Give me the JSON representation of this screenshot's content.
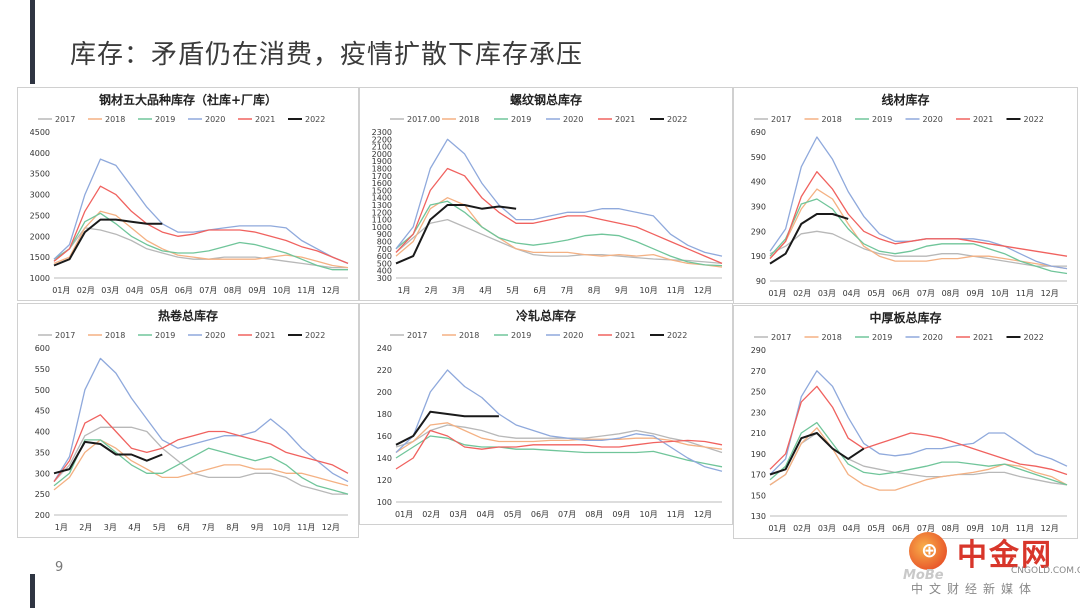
{
  "slide": {
    "title": "库存：矛盾仍在消费，疫情扩散下库存承压",
    "page_number": "9"
  },
  "watermark": {
    "name": "中金网",
    "mark": "MoBe",
    "url": "CNGOLD.COM.CN",
    "slogan": "中文财经新媒体",
    "icon": "zhongjin-logo-icon"
  },
  "colors": {
    "2017": "#b8b8b8",
    "2018": "#f4b183",
    "2019": "#70c59a",
    "2020": "#8fa9dc",
    "2021": "#f0625f",
    "2022": "#1a1a1a"
  },
  "chart_data": [
    {
      "type": "line",
      "title": "钢材五大品种库存（社库+厂库）",
      "x_tick_labels": [
        "01月",
        "02月",
        "03月",
        "04月",
        "05月",
        "06月",
        "07月",
        "08月",
        "09月",
        "10月",
        "11月",
        "12月"
      ],
      "ylim": [
        1000,
        4500
      ],
      "y_ticks": [
        1000,
        1500,
        2000,
        2500,
        3000,
        3500,
        4000,
        4500
      ],
      "legend": "top",
      "series": [
        {
          "name": "2017",
          "values": [
            1400,
            1700,
            2200,
            2150,
            2050,
            1900,
            1700,
            1600,
            1500,
            1450,
            1450,
            1500,
            1500,
            1500,
            1450,
            1400,
            1350,
            1300,
            1250,
            1250
          ]
        },
        {
          "name": "2018",
          "values": [
            1350,
            1500,
            2200,
            2600,
            2500,
            2200,
            1900,
            1700,
            1550,
            1500,
            1450,
            1450,
            1450,
            1450,
            1500,
            1550,
            1500,
            1400,
            1300,
            1250
          ]
        },
        {
          "name": "2019",
          "values": [
            1450,
            1700,
            2350,
            2550,
            2300,
            2000,
            1800,
            1650,
            1600,
            1600,
            1650,
            1750,
            1850,
            1800,
            1700,
            1600,
            1450,
            1300,
            1200,
            1200
          ]
        },
        {
          "name": "2020",
          "values": [
            1450,
            1800,
            3000,
            3850,
            3700,
            3200,
            2700,
            2300,
            2100,
            2100,
            2150,
            2200,
            2250,
            2250,
            2250,
            2200,
            1900,
            1700,
            1500,
            1350
          ]
        },
        {
          "name": "2021",
          "values": [
            1400,
            1700,
            2600,
            3200,
            3000,
            2600,
            2300,
            2100,
            2000,
            2050,
            2150,
            2150,
            2150,
            2100,
            2000,
            1900,
            1750,
            1650,
            1500,
            1350
          ]
        },
        {
          "name": "2022",
          "values": [
            1300,
            1450,
            2100,
            2400,
            2400,
            2350,
            2300,
            2300,
            null,
            null,
            null,
            null,
            null,
            null,
            null,
            null,
            null,
            null,
            null,
            null
          ]
        }
      ]
    },
    {
      "type": "line",
      "title": "螺纹钢总库存",
      "x_tick_labels": [
        "1月",
        "2月",
        "3月",
        "4月",
        "5月",
        "6月",
        "7月",
        "8月",
        "9月",
        "10月",
        "11月",
        "12月"
      ],
      "ylim": [
        300,
        2300
      ],
      "y_ticks": [
        300,
        400,
        500,
        600,
        700,
        800,
        900,
        1000,
        1100,
        1200,
        1300,
        1400,
        1500,
        1600,
        1700,
        1800,
        1900,
        2000,
        2100,
        2200,
        2300
      ],
      "legend": "top",
      "series": [
        {
          "name": "2017.00",
          "values": [
            650,
            850,
            1050,
            1100,
            1000,
            900,
            800,
            700,
            620,
            600,
            600,
            620,
            620,
            600,
            580,
            560,
            550,
            540,
            520,
            500
          ]
        },
        {
          "name": "2018",
          "values": [
            600,
            800,
            1250,
            1400,
            1300,
            1000,
            850,
            700,
            650,
            650,
            650,
            620,
            600,
            620,
            600,
            620,
            550,
            500,
            480,
            450
          ]
        },
        {
          "name": "2019",
          "values": [
            700,
            900,
            1300,
            1350,
            1200,
            1000,
            850,
            780,
            750,
            780,
            820,
            880,
            900,
            880,
            800,
            700,
            600,
            520,
            480,
            470
          ]
        },
        {
          "name": "2020",
          "values": [
            700,
            1000,
            1800,
            2200,
            2000,
            1600,
            1300,
            1100,
            1100,
            1150,
            1200,
            1200,
            1250,
            1250,
            1200,
            1150,
            900,
            750,
            650,
            600
          ]
        },
        {
          "name": "2021",
          "values": [
            650,
            900,
            1500,
            1800,
            1700,
            1400,
            1200,
            1050,
            1050,
            1100,
            1150,
            1150,
            1100,
            1050,
            1000,
            900,
            800,
            700,
            600,
            500
          ]
        },
        {
          "name": "2022",
          "values": [
            500,
            600,
            1100,
            1300,
            1300,
            1250,
            1280,
            1250,
            null,
            null,
            null,
            null,
            null,
            null,
            null,
            null,
            null,
            null,
            null,
            null
          ]
        }
      ]
    },
    {
      "type": "line",
      "title": "线材库存",
      "x_tick_labels": [
        "01月",
        "02月",
        "03月",
        "04月",
        "05月",
        "06月",
        "07月",
        "08月",
        "09月",
        "10月",
        "11月",
        "12月"
      ],
      "ylim": [
        90,
        690
      ],
      "y_ticks": [
        90,
        190,
        290,
        390,
        490,
        590,
        690
      ],
      "legend": "top",
      "series": [
        {
          "name": "2017",
          "values": [
            200,
            230,
            280,
            290,
            280,
            250,
            220,
            200,
            190,
            190,
            190,
            200,
            200,
            190,
            180,
            170,
            160,
            150,
            150,
            150
          ]
        },
        {
          "name": "2018",
          "values": [
            180,
            250,
            380,
            460,
            420,
            320,
            230,
            190,
            170,
            170,
            170,
            180,
            180,
            190,
            190,
            180,
            170,
            160,
            150,
            140
          ]
        },
        {
          "name": "2019",
          "values": [
            190,
            260,
            400,
            420,
            380,
            300,
            240,
            210,
            200,
            210,
            230,
            240,
            240,
            240,
            220,
            200,
            170,
            150,
            130,
            120
          ]
        },
        {
          "name": "2020",
          "values": [
            210,
            300,
            550,
            670,
            580,
            450,
            350,
            280,
            250,
            250,
            260,
            260,
            260,
            260,
            250,
            230,
            200,
            170,
            150,
            140
          ]
        },
        {
          "name": "2021",
          "values": [
            180,
            250,
            430,
            530,
            460,
            360,
            290,
            260,
            240,
            250,
            260,
            260,
            260,
            250,
            240,
            230,
            220,
            210,
            200,
            190
          ]
        },
        {
          "name": "2022",
          "values": [
            160,
            200,
            320,
            360,
            360,
            340,
            null,
            null,
            null,
            null,
            null,
            null,
            null,
            null,
            null,
            null,
            null,
            null,
            null,
            null
          ]
        }
      ]
    },
    {
      "type": "line",
      "title": "热卷总库存",
      "x_tick_labels": [
        "1月",
        "2月",
        "3月",
        "4月",
        "5月",
        "6月",
        "7月",
        "8月",
        "9月",
        "10月",
        "11月",
        "12月"
      ],
      "ylim": [
        200,
        600
      ],
      "y_ticks": [
        200,
        250,
        300,
        350,
        400,
        450,
        500,
        550,
        600
      ],
      "legend": "top",
      "series": [
        {
          "name": "2017",
          "values": [
            280,
            320,
            390,
            410,
            410,
            410,
            400,
            360,
            330,
            300,
            290,
            290,
            290,
            300,
            300,
            290,
            270,
            260,
            250,
            250
          ]
        },
        {
          "name": "2018",
          "values": [
            260,
            290,
            350,
            380,
            360,
            330,
            310,
            290,
            290,
            300,
            310,
            320,
            320,
            310,
            310,
            300,
            300,
            290,
            280,
            270
          ]
        },
        {
          "name": "2019",
          "values": [
            270,
            300,
            380,
            380,
            350,
            320,
            300,
            300,
            320,
            340,
            360,
            350,
            340,
            330,
            340,
            320,
            290,
            270,
            260,
            250
          ]
        },
        {
          "name": "2020",
          "values": [
            280,
            340,
            500,
            575,
            540,
            480,
            430,
            380,
            360,
            370,
            380,
            390,
            390,
            400,
            430,
            400,
            360,
            330,
            300,
            280
          ]
        },
        {
          "name": "2021",
          "values": [
            280,
            330,
            420,
            440,
            400,
            360,
            350,
            360,
            380,
            390,
            400,
            400,
            390,
            380,
            370,
            350,
            340,
            330,
            320,
            300
          ]
        },
        {
          "name": "2022",
          "values": [
            300,
            310,
            375,
            370,
            345,
            345,
            330,
            345,
            null,
            null,
            null,
            null,
            null,
            null,
            null,
            null,
            null,
            null,
            null,
            null
          ]
        }
      ]
    },
    {
      "type": "line",
      "title": "冷轧总库存",
      "x_tick_labels": [
        "01月",
        "02月",
        "03月",
        "04月",
        "05月",
        "06月",
        "07月",
        "08月",
        "09月",
        "10月",
        "11月",
        "12月"
      ],
      "ylim": [
        100,
        240
      ],
      "y_ticks": [
        100,
        120,
        140,
        160,
        180,
        200,
        220,
        240
      ],
      "legend": "top",
      "series": [
        {
          "name": "2017",
          "values": [
            150,
            155,
            165,
            170,
            168,
            165,
            160,
            158,
            158,
            158,
            158,
            158,
            160,
            162,
            165,
            162,
            158,
            155,
            150,
            145
          ]
        },
        {
          "name": "2018",
          "values": [
            145,
            155,
            170,
            172,
            165,
            158,
            155,
            155,
            155,
            156,
            156,
            157,
            157,
            157,
            158,
            158,
            156,
            152,
            150,
            148
          ]
        },
        {
          "name": "2019",
          "values": [
            140,
            150,
            160,
            158,
            152,
            150,
            150,
            148,
            148,
            147,
            146,
            145,
            145,
            145,
            145,
            146,
            142,
            138,
            135,
            132
          ]
        },
        {
          "name": "2020",
          "values": [
            145,
            160,
            200,
            220,
            205,
            195,
            180,
            170,
            165,
            160,
            158,
            156,
            156,
            158,
            162,
            160,
            150,
            140,
            132,
            128
          ]
        },
        {
          "name": "2021",
          "values": [
            130,
            140,
            165,
            160,
            150,
            148,
            150,
            150,
            152,
            152,
            152,
            152,
            150,
            150,
            152,
            154,
            155,
            156,
            155,
            152
          ]
        },
        {
          "name": "2022",
          "values": [
            152,
            160,
            182,
            180,
            178,
            178,
            178,
            null,
            null,
            null,
            null,
            null,
            null,
            null,
            null,
            null,
            null,
            null,
            null,
            null
          ]
        }
      ]
    },
    {
      "type": "line",
      "title": "中厚板总库存",
      "x_tick_labels": [
        "01月",
        "02月",
        "03月",
        "04月",
        "05月",
        "06月",
        "07月",
        "08月",
        "09月",
        "10月",
        "11月",
        "12月"
      ],
      "ylim": [
        130,
        290
      ],
      "y_ticks": [
        130,
        150,
        170,
        190,
        210,
        230,
        250,
        270,
        290
      ],
      "legend": "top",
      "series": [
        {
          "name": "2017",
          "values": [
            160,
            170,
            200,
            210,
            195,
            185,
            178,
            175,
            172,
            170,
            168,
            168,
            170,
            170,
            172,
            172,
            168,
            165,
            162,
            160
          ]
        },
        {
          "name": "2018",
          "values": [
            160,
            170,
            200,
            215,
            195,
            170,
            160,
            155,
            155,
            160,
            165,
            168,
            170,
            172,
            175,
            180,
            178,
            172,
            168,
            160
          ]
        },
        {
          "name": "2019",
          "values": [
            165,
            178,
            210,
            220,
            200,
            180,
            172,
            170,
            172,
            175,
            178,
            182,
            182,
            180,
            178,
            180,
            175,
            170,
            165,
            160
          ]
        },
        {
          "name": "2020",
          "values": [
            170,
            185,
            245,
            270,
            255,
            225,
            200,
            190,
            188,
            190,
            195,
            195,
            198,
            200,
            210,
            210,
            200,
            190,
            185,
            178
          ]
        },
        {
          "name": "2021",
          "values": [
            175,
            190,
            240,
            255,
            235,
            205,
            195,
            200,
            205,
            210,
            208,
            205,
            200,
            195,
            190,
            185,
            180,
            178,
            175,
            170
          ]
        },
        {
          "name": "2022",
          "values": [
            170,
            175,
            205,
            210,
            195,
            185,
            195,
            null,
            null,
            null,
            null,
            null,
            null,
            null,
            null,
            null,
            null,
            null,
            null,
            null
          ]
        }
      ]
    }
  ]
}
